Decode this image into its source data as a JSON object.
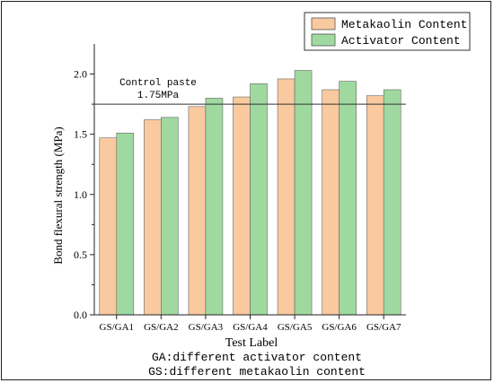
{
  "chart_data": {
    "type": "bar",
    "categories": [
      "GS/GA1",
      "GS/GA2",
      "GS/GA3",
      "GS/GA4",
      "GS/GA5",
      "GS/GA6",
      "GS/GA7"
    ],
    "series": [
      {
        "name": "Metakaolin Content",
        "color": "#f9c99f",
        "values": [
          1.47,
          1.62,
          1.73,
          1.81,
          1.96,
          1.87,
          1.82
        ]
      },
      {
        "name": "Activator Content",
        "color": "#9fd9a0",
        "values": [
          1.51,
          1.64,
          1.8,
          1.92,
          2.03,
          1.94,
          1.87
        ]
      }
    ],
    "xlabel": "Test Label",
    "ylabel": "Bond flexural strength (MPa)",
    "ylim": [
      0,
      2.25
    ],
    "yticks": [
      "0.0",
      "0.5",
      "1.0",
      "1.5",
      "2.0"
    ],
    "reference_line": {
      "value": 1.75,
      "label_line1": "Control paste",
      "label_line2": "1.75MPa"
    },
    "notes": [
      "GA:different activator content",
      "GS:different metakaolin content"
    ],
    "legend_position": "top-right",
    "grid": false
  }
}
